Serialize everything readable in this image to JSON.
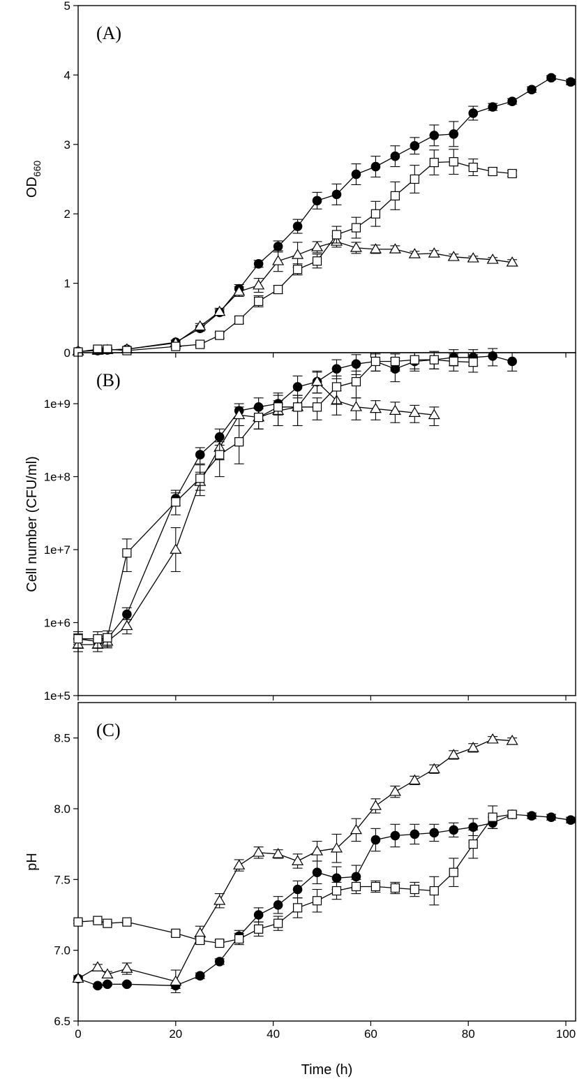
{
  "chart_data": [
    {
      "type": "line",
      "panel_label": "(A)",
      "ylabel": "OD",
      "ylabel_subscript": "660",
      "xlim": [
        0,
        102
      ],
      "ylim": [
        0,
        5
      ],
      "ytick_values": [
        0,
        1,
        2,
        3,
        4,
        5
      ],
      "ytick_labels": [
        "0",
        "1",
        "2",
        "3",
        "4",
        "5"
      ],
      "series": [
        {
          "marker": "circle-filled",
          "x": [
            0,
            4,
            6,
            10,
            20,
            25,
            29,
            33,
            37,
            41,
            45,
            49,
            53,
            57,
            61,
            65,
            69,
            73,
            77,
            81,
            85,
            89,
            93,
            97,
            101
          ],
          "y": [
            0.02,
            0.03,
            0.04,
            0.05,
            0.15,
            0.35,
            0.58,
            0.92,
            1.28,
            1.53,
            1.82,
            2.19,
            2.28,
            2.57,
            2.68,
            2.83,
            2.98,
            3.13,
            3.15,
            3.45,
            3.54,
            3.62,
            3.79,
            3.96,
            3.9
          ],
          "err": [
            0.02,
            0.02,
            0.02,
            0.03,
            0.03,
            0.04,
            0.04,
            0.06,
            0.05,
            0.08,
            0.1,
            0.12,
            0.15,
            0.15,
            0.15,
            0.15,
            0.12,
            0.15,
            0.18,
            0.1,
            0.05,
            0.04,
            0.04,
            0.03,
            0.04
          ]
        },
        {
          "marker": "triangle-open",
          "x": [
            0,
            4,
            6,
            10,
            20,
            25,
            29,
            33,
            37,
            41,
            45,
            49,
            53,
            57,
            61,
            65,
            69,
            73,
            77,
            81,
            85,
            89
          ],
          "y": [
            0.02,
            0.03,
            0.04,
            0.05,
            0.14,
            0.38,
            0.59,
            0.88,
            0.97,
            1.32,
            1.41,
            1.52,
            1.6,
            1.51,
            1.49,
            1.49,
            1.42,
            1.43,
            1.38,
            1.36,
            1.34,
            1.3
          ],
          "err": [
            0.02,
            0.02,
            0.02,
            0.03,
            0.04,
            0.04,
            0.05,
            0.07,
            0.1,
            0.15,
            0.18,
            0.08,
            0.08,
            0.08,
            0.06,
            0.05,
            0.04,
            0.04,
            0.04,
            0.03,
            0.03,
            0.04
          ]
        },
        {
          "marker": "square-open",
          "x": [
            0,
            4,
            6,
            10,
            20,
            25,
            29,
            33,
            37,
            41,
            45,
            49,
            53,
            57,
            61,
            65,
            69,
            73,
            77,
            81,
            85,
            89
          ],
          "y": [
            0.01,
            0.05,
            0.05,
            0.03,
            0.09,
            0.12,
            0.25,
            0.47,
            0.74,
            0.91,
            1.2,
            1.32,
            1.7,
            1.8,
            2.0,
            2.26,
            2.5,
            2.74,
            2.75,
            2.67,
            2.61,
            2.58
          ],
          "err": [
            0.01,
            0.02,
            0.02,
            0.02,
            0.03,
            0.03,
            0.04,
            0.05,
            0.08,
            0.06,
            0.08,
            0.1,
            0.12,
            0.15,
            0.18,
            0.2,
            0.2,
            0.18,
            0.18,
            0.12,
            0.05,
            0.04
          ]
        }
      ]
    },
    {
      "type": "line",
      "panel_label": "(B)",
      "ylabel": "Cell number (CFU/ml)",
      "yscale": "log",
      "xlim": [
        0,
        102
      ],
      "ylim": [
        100000,
        5000000000
      ],
      "ytick_values": [
        100000,
        1000000,
        10000000,
        100000000,
        1000000000
      ],
      "ytick_labels": [
        "1e+5",
        "1e+6",
        "1e+7",
        "1e+8",
        "1e+9"
      ],
      "series": [
        {
          "marker": "circle-filled",
          "x": [
            0,
            4,
            6,
            10,
            20,
            25,
            29,
            33,
            37,
            41,
            45,
            49,
            53,
            57,
            61,
            65,
            69,
            73,
            77,
            81,
            85,
            89
          ],
          "y": [
            600000,
            550000,
            600000,
            1300000,
            50000000,
            200000000,
            350000000,
            800000000,
            900000000,
            1000000000,
            1700000000,
            2000000000,
            3000000000,
            3500000000,
            3800000000,
            3000000000,
            3800000000,
            4000000000,
            4300000000,
            4300000000,
            4500000000,
            3800000000
          ],
          "err_lo": [
            100000,
            100000,
            100000,
            200000,
            10000000,
            50000000,
            80000000,
            150000000,
            200000000,
            300000000,
            500000000,
            600000000,
            800000000,
            1000000000,
            1000000000,
            1000000000,
            1000000000,
            1000000000,
            1000000000,
            1000000000,
            1200000000,
            1000000000
          ],
          "err_hi": [
            100000,
            100000,
            100000,
            300000,
            10000000,
            50000000,
            100000000,
            200000000,
            300000000,
            400000000,
            700000000,
            800000000,
            1000000000,
            1200000000,
            1200000000,
            1200000000,
            1200000000,
            1200000000,
            1200000000,
            1200000000,
            1200000000,
            1200000000
          ]
        },
        {
          "marker": "triangle-open",
          "x": [
            0,
            4,
            6,
            10,
            20,
            25,
            29,
            33,
            37,
            41,
            45,
            49,
            53,
            57,
            61,
            65,
            69,
            73
          ],
          "y": [
            500000,
            500000,
            550000,
            900000,
            10000000,
            85000000,
            250000000,
            700000000,
            650000000,
            800000000,
            900000000,
            2000000000,
            1100000000,
            900000000,
            850000000,
            800000000,
            750000000,
            700000000
          ],
          "err_lo": [
            100000,
            100000,
            100000,
            200000,
            5000000,
            20000000,
            80000000,
            200000000,
            200000000,
            300000000,
            400000000,
            600000000,
            400000000,
            300000000,
            250000000,
            250000000,
            200000000,
            200000000
          ],
          "err_hi": [
            100000,
            100000,
            100000,
            200000,
            10000000,
            30000000,
            100000000,
            200000000,
            200000000,
            300000000,
            400000000,
            700000000,
            400000000,
            300000000,
            250000000,
            250000000,
            200000000,
            200000000
          ]
        },
        {
          "marker": "square-open",
          "x": [
            0,
            4,
            6,
            10,
            20,
            25,
            29,
            33,
            37,
            41,
            45,
            49,
            53,
            57,
            61,
            65,
            69,
            73,
            77,
            81
          ],
          "y": [
            600000,
            600000,
            620000,
            9000000,
            45000000,
            95000000,
            200000000,
            300000000,
            650000000,
            900000000,
            900000000,
            900000000,
            1700000000,
            2000000000,
            3800000000,
            3800000000,
            4000000000,
            4000000000,
            3800000000,
            3700000000
          ],
          "err_lo": [
            150000,
            150000,
            150000,
            4000000,
            15000000,
            40000000,
            100000000,
            150000000,
            200000000,
            400000000,
            400000000,
            300000000,
            700000000,
            800000000,
            1000000000,
            1000000000,
            1000000000,
            1000000000,
            1000000000,
            1000000000
          ],
          "err_hi": [
            150000,
            150000,
            150000,
            5000000,
            20000000,
            50000000,
            100000000,
            200000000,
            250000000,
            400000000,
            400000000,
            300000000,
            700000000,
            800000000,
            1000000000,
            1000000000,
            1000000000,
            1000000000,
            1000000000,
            1000000000
          ]
        }
      ]
    },
    {
      "type": "line",
      "panel_label": "(C)",
      "ylabel": "pH",
      "xlabel": "Time (h)",
      "xlim": [
        0,
        102
      ],
      "ylim": [
        6.5,
        8.75
      ],
      "ytick_values": [
        6.5,
        7.0,
        7.5,
        8.0,
        8.5
      ],
      "ytick_labels": [
        "6.5",
        "7.0",
        "7.5",
        "8.0",
        "8.5"
      ],
      "xtick_values": [
        0,
        20,
        40,
        60,
        80,
        100
      ],
      "xtick_labels": [
        "0",
        "20",
        "40",
        "60",
        "80",
        "100"
      ],
      "series": [
        {
          "marker": "circle-filled",
          "x": [
            0,
            4,
            6,
            10,
            20,
            25,
            29,
            33,
            37,
            41,
            45,
            49,
            53,
            57,
            61,
            65,
            69,
            73,
            77,
            81,
            85,
            89,
            93,
            97,
            101
          ],
          "y": [
            6.8,
            6.75,
            6.76,
            6.76,
            6.75,
            6.82,
            6.92,
            7.1,
            7.25,
            7.32,
            7.43,
            7.55,
            7.51,
            7.52,
            7.78,
            7.81,
            7.82,
            7.83,
            7.85,
            7.87,
            7.9,
            7.96,
            7.95,
            7.94,
            7.92
          ],
          "err": [
            0.01,
            0.01,
            0.01,
            0.01,
            0.02,
            0.02,
            0.02,
            0.04,
            0.05,
            0.06,
            0.06,
            0.08,
            0.08,
            0.08,
            0.08,
            0.08,
            0.07,
            0.06,
            0.05,
            0.06,
            0.04,
            0.02,
            0.02,
            0.02,
            0.02
          ]
        },
        {
          "marker": "triangle-open",
          "x": [
            0,
            4,
            6,
            10,
            20,
            25,
            29,
            33,
            37,
            41,
            45,
            49,
            53,
            57,
            61,
            65,
            69,
            73,
            77,
            81,
            85,
            89
          ],
          "y": [
            6.8,
            6.88,
            6.83,
            6.87,
            6.78,
            7.12,
            7.35,
            7.6,
            7.69,
            7.68,
            7.63,
            7.7,
            7.72,
            7.85,
            8.02,
            8.12,
            8.2,
            8.28,
            8.38,
            8.43,
            8.49,
            8.48
          ],
          "err": [
            0.02,
            0.02,
            0.02,
            0.04,
            0.08,
            0.05,
            0.05,
            0.04,
            0.04,
            0.03,
            0.05,
            0.07,
            0.1,
            0.08,
            0.05,
            0.04,
            0.03,
            0.03,
            0.03,
            0.03,
            0.02,
            0.02
          ]
        },
        {
          "marker": "square-open",
          "x": [
            0,
            4,
            6,
            10,
            20,
            25,
            29,
            33,
            37,
            41,
            45,
            49,
            53,
            57,
            61,
            65,
            69,
            73,
            77,
            81,
            85,
            89
          ],
          "y": [
            7.2,
            7.21,
            7.19,
            7.2,
            7.12,
            7.07,
            7.05,
            7.08,
            7.15,
            7.19,
            7.3,
            7.35,
            7.42,
            7.45,
            7.45,
            7.44,
            7.43,
            7.42,
            7.55,
            7.75,
            7.94,
            7.96
          ],
          "err": [
            0.01,
            0.01,
            0.01,
            0.01,
            0.02,
            0.02,
            0.02,
            0.04,
            0.05,
            0.05,
            0.07,
            0.08,
            0.06,
            0.05,
            0.04,
            0.04,
            0.05,
            0.1,
            0.1,
            0.1,
            0.08,
            0.02
          ]
        }
      ]
    }
  ]
}
